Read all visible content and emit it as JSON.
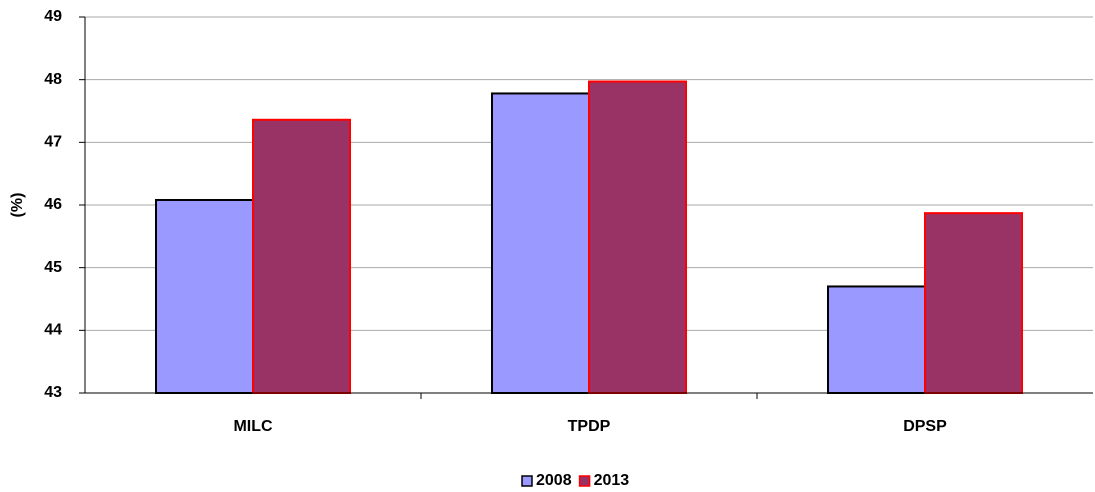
{
  "chart_data": {
    "type": "bar",
    "y_label": "(%)",
    "categories": [
      "MILC",
      "TPDP",
      "DPSP"
    ],
    "series": [
      {
        "name": "2008",
        "color": "#9999ff",
        "edgecolor": "#000000",
        "values": [
          46.08,
          47.78,
          44.7
        ]
      },
      {
        "name": "2013",
        "color": "#993366",
        "edgecolor": "#ff0000",
        "values": [
          47.36,
          47.97,
          45.87
        ]
      }
    ],
    "ylim": [
      43,
      49
    ],
    "yticks": [
      43,
      44,
      45,
      46,
      47,
      48,
      49
    ],
    "grid": true,
    "legend": "bottom"
  }
}
